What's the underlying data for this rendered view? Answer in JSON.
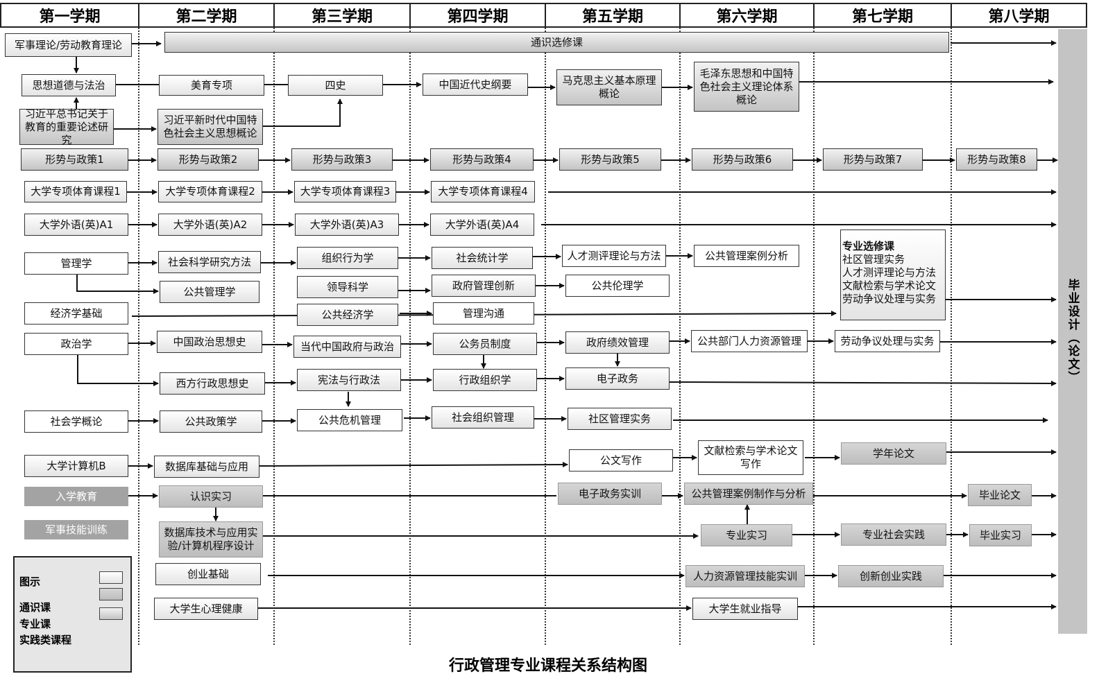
{
  "semesters": [
    "第一学期",
    "第二学期",
    "第三学期",
    "第四学期",
    "第五学期",
    "第六学期",
    "第七学期",
    "第八学期"
  ],
  "courses": {
    "military_labor_theory": "军事理论/劳动教育理论",
    "general_electives": "通识选修课",
    "ethics_law": "思想道德与法治",
    "aesthetic": "美育专项",
    "four_histories": "四史",
    "modern_history": "中国近代史纲要",
    "marxism": "马克思主义基本原理概论",
    "mao_theory": "毛泽东思想和中国特色社会主义理论体系概论",
    "xi_education": "习近平总书记关于教育的重要论述研究",
    "xi_thought": "习近平新时代中国特色社会主义思想概论",
    "policy1": "形势与政策1",
    "policy2": "形势与政策2",
    "policy3": "形势与政策3",
    "policy4": "形势与政策4",
    "policy5": "形势与政策5",
    "policy6": "形势与政策6",
    "policy7": "形势与政策7",
    "policy8": "形势与政策8",
    "pe1": "大学专项体育课程1",
    "pe2": "大学专项体育课程2",
    "pe3": "大学专项体育课程3",
    "pe4": "大学专项体育课程4",
    "en1": "大学外语(英)A1",
    "en2": "大学外语(英)A2",
    "en3": "大学外语(英)A3",
    "en4": "大学外语(英)A4",
    "management": "管理学",
    "social_research": "社会科学研究方法",
    "org_behavior": "组织行为学",
    "social_stats": "社会统计学",
    "talent_assessment": "人才测评理论与方法",
    "case_analysis": "公共管理案例分析",
    "public_mgmt": "公共管理学",
    "leadership": "领导科学",
    "gov_innovation": "政府管理创新",
    "public_ethics": "公共伦理学",
    "economics": "经济学基础",
    "public_economics": "公共经济学",
    "mgmt_communication": "管理沟通",
    "politics": "政治学",
    "cn_political_thought": "中国政治思想史",
    "cn_gov_politics": "当代中国政府与政治",
    "civil_service": "公务员制度",
    "gov_performance": "政府绩效管理",
    "public_hr": "公共部门人力资源管理",
    "labor_dispute": "劳动争议处理与实务",
    "western_admin_thought": "西方行政思想史",
    "const_admin_law": "宪法与行政法",
    "admin_org": "行政组织学",
    "e_gov": "电子政务",
    "sociology": "社会学概论",
    "public_policy": "公共政策学",
    "crisis_mgmt": "公共危机管理",
    "social_org_mgmt": "社会组织管理",
    "community_mgmt": "社区管理实务",
    "computer_b": "大学计算机B",
    "database_basics": "数据库基础与应用",
    "official_writing": "公文写作",
    "lit_retrieval": "文献检索与学术论文写作",
    "term_paper": "学年论文",
    "enrollment_edu": "入学教育",
    "cognitive_internship": "认识实习",
    "e_gov_training": "电子政务实训",
    "case_making": "公共管理案例制作与分析",
    "grad_paper": "毕业论文",
    "military_training": "军事技能训练",
    "database_lab": "数据库技术与应用实验/计算机程序设计",
    "professional_internship": "专业实习",
    "social_practice": "专业社会实践",
    "grad_internship": "毕业实习",
    "entrepreneurship": "创业基础",
    "hr_skills": "人力资源管理技能实训",
    "innovation_practice": "创新创业实践",
    "mental_health": "大学生心理健康",
    "career_guidance": "大学生就业指导"
  },
  "electives": {
    "heading": "专业选修课",
    "items": [
      "社区管理实务",
      "人才测评理论与方法",
      "文献检索与学术论文",
      "劳动争议处理与实务"
    ]
  },
  "thesis": "毕业设计（论文）",
  "legend": {
    "title": "图示",
    "items": [
      "通识课",
      "专业课",
      "实践类课程"
    ]
  },
  "title": "行政管理专业课程关系结构图",
  "colors": {
    "general": "#ffffff",
    "professional": "#c8c8c8",
    "practice": "#a3a3a3"
  }
}
